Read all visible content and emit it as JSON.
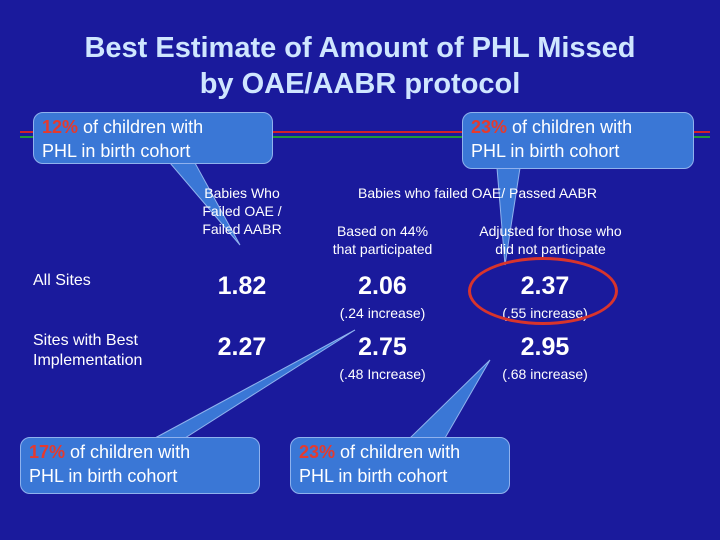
{
  "title": {
    "line1": "Best Estimate of Amount of PHL Missed",
    "line2": "by OAE/AABR protocol"
  },
  "callouts": [
    {
      "pct": "12%",
      "line1": " of children with",
      "line2": "PHL in birth cohort"
    },
    {
      "pct": "23%",
      "line1": " of children with",
      "line2": "PHL in birth cohort"
    },
    {
      "pct": "17%",
      "line1": " of children with",
      "line2": "PHL in birth cohort"
    },
    {
      "pct": "23%",
      "line1": " of children with",
      "line2": "PHL in birth cohort"
    }
  ],
  "table": {
    "col1_header": [
      "Babies Who",
      "Failed OAE /",
      "Failed AABR"
    ],
    "group_header": "Babies who failed OAE/ Passed AABR",
    "col2_header": [
      "Based on 44%",
      "that participated"
    ],
    "col3_header": [
      "Adjusted for those who",
      "did not participate"
    ],
    "rows": [
      {
        "label": [
          "All Sites"
        ],
        "v1": "1.82",
        "v2": "2.06",
        "v3": "2.37",
        "n2": "(.24 increase)",
        "n3": "(.55 increase)"
      },
      {
        "label": [
          "Sites with Best",
          "Implementation"
        ],
        "v1": "2.27",
        "v2": "2.75",
        "v3": "2.95",
        "n2": "(.48 Increase)",
        "n3": "(.68 increase)"
      }
    ]
  },
  "colors": {
    "background": "#1a1a9c",
    "bubble": "#3a77d6",
    "highlight": "#e53a2e"
  }
}
